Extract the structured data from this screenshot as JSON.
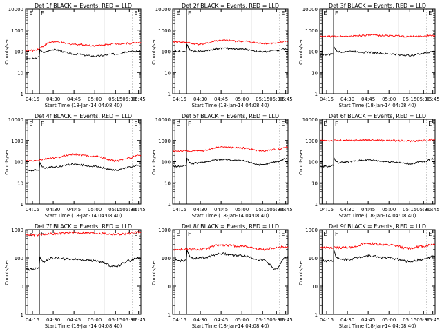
{
  "figure": {
    "xaxis_title": "Start Time (18-Jan-14 04:08:40)",
    "yaxis_title": "Counts/sec",
    "x_tick_labels": [
      "04:15",
      "04:30",
      "04:45",
      "05:00",
      "05:15",
      "05:30",
      "05:45"
    ],
    "marker_labels": [
      "E",
      "F",
      "E"
    ],
    "colors": {
      "events": "#000000",
      "lld": "#ff0000",
      "background": "#ffffff"
    }
  },
  "chart_data": [
    {
      "type": "line",
      "title": "Det 1f BLACK = Events, RED = LLD",
      "x": [
        "04:15",
        "04:30",
        "04:45",
        "05:00",
        "05:15",
        "05:30",
        "05:45"
      ],
      "ylim": [
        1,
        10000
      ],
      "y_scale": "log",
      "y_tick_labels": [
        "1",
        "10",
        "100",
        "1000",
        "10000"
      ],
      "series": [
        {
          "name": "Events",
          "color": "#000000",
          "values": [
            45,
            120,
            75,
            60,
            75,
            100,
            100
          ]
        },
        {
          "name": "LLD",
          "color": "#ff0000",
          "values": [
            110,
            280,
            220,
            190,
            230,
            240,
            260
          ]
        }
      ]
    },
    {
      "type": "line",
      "title": "Det 2f BLACK = Events, RED = LLD",
      "x": [
        "04:15",
        "04:30",
        "04:45",
        "05:00",
        "05:15",
        "05:30",
        "05:45"
      ],
      "ylim": [
        1,
        10000
      ],
      "y_scale": "log",
      "y_tick_labels": [
        "1",
        "10",
        "100",
        "1000",
        "10000"
      ],
      "series": [
        {
          "name": "Events",
          "color": "#000000",
          "values": [
            100,
            100,
            140,
            130,
            95,
            110,
            130
          ]
        },
        {
          "name": "LLD",
          "color": "#ff0000",
          "values": [
            280,
            220,
            330,
            300,
            240,
            240,
            300
          ]
        }
      ]
    },
    {
      "type": "line",
      "title": "Det 3f BLACK = Events, RED = LLD",
      "x": [
        "04:15",
        "04:30",
        "04:45",
        "05:00",
        "05:15",
        "05:30",
        "05:45"
      ],
      "ylim": [
        1,
        10000
      ],
      "y_scale": "log",
      "y_tick_labels": [
        "1",
        "10",
        "100",
        "1000",
        "10000"
      ],
      "series": [
        {
          "name": "Events",
          "color": "#000000",
          "values": [
            70,
            100,
            90,
            75,
            65,
            80,
            95
          ]
        },
        {
          "name": "LLD",
          "color": "#ff0000",
          "values": [
            500,
            520,
            580,
            560,
            500,
            530,
            560
          ]
        }
      ]
    },
    {
      "type": "line",
      "title": "Det 4f BLACK = Events, RED = LLD",
      "x": [
        "04:15",
        "04:30",
        "04:45",
        "05:00",
        "05:15",
        "05:30",
        "05:45"
      ],
      "ylim": [
        1,
        10000
      ],
      "y_scale": "log",
      "y_tick_labels": [
        "1",
        "10",
        "100",
        "1000",
        "10000"
      ],
      "series": [
        {
          "name": "Events",
          "color": "#000000",
          "values": [
            40,
            55,
            75,
            60,
            40,
            55,
            70
          ]
        },
        {
          "name": "LLD",
          "color": "#ff0000",
          "values": [
            110,
            150,
            220,
            180,
            110,
            150,
            200
          ]
        }
      ]
    },
    {
      "type": "line",
      "title": "Det 5f BLACK = Events, RED = LLD",
      "x": [
        "04:15",
        "04:30",
        "04:45",
        "05:00",
        "05:15",
        "05:30",
        "05:45"
      ],
      "ylim": [
        1,
        10000
      ],
      "y_scale": "log",
      "y_tick_labels": [
        "1",
        "10",
        "100",
        "1000",
        "10000"
      ],
      "series": [
        {
          "name": "Events",
          "color": "#000000",
          "values": [
            60,
            90,
            130,
            110,
            70,
            100,
            140
          ]
        },
        {
          "name": "LLD",
          "color": "#ff0000",
          "values": [
            320,
            320,
            500,
            450,
            320,
            380,
            480
          ]
        }
      ]
    },
    {
      "type": "line",
      "title": "Det 6f BLACK = Events, RED = LLD",
      "x": [
        "04:15",
        "04:30",
        "04:45",
        "05:00",
        "05:15",
        "05:30",
        "05:45"
      ],
      "ylim": [
        1,
        10000
      ],
      "y_scale": "log",
      "y_tick_labels": [
        "1",
        "10",
        "100",
        "1000",
        "10000"
      ],
      "series": [
        {
          "name": "Events",
          "color": "#000000",
          "values": [
            60,
            100,
            120,
            100,
            80,
            100,
            140
          ]
        },
        {
          "name": "LLD",
          "color": "#ff0000",
          "values": [
            1000,
            1000,
            1050,
            1000,
            950,
            1000,
            1100
          ]
        }
      ]
    },
    {
      "type": "line",
      "title": "Det 7f BLACK = Events, RED = LLD",
      "x": [
        "04:15",
        "04:30",
        "04:45",
        "05:00",
        "05:15",
        "05:30",
        "05:45"
      ],
      "ylim": [
        1,
        1000
      ],
      "y_scale": "log",
      "y_tick_labels": [
        "1",
        "10",
        "100",
        "1000"
      ],
      "series": [
        {
          "name": "Events",
          "color": "#000000",
          "values": [
            40,
            100,
            90,
            80,
            50,
            80,
            100
          ]
        },
        {
          "name": "LLD",
          "color": "#ff0000",
          "values": [
            650,
            700,
            780,
            750,
            680,
            720,
            800
          ]
        }
      ]
    },
    {
      "type": "line",
      "title": "Det 8f BLACK = Events, RED = LLD",
      "x": [
        "04:15",
        "04:30",
        "04:45",
        "05:00",
        "05:15",
        "05:30",
        "05:45"
      ],
      "ylim": [
        1,
        1000
      ],
      "y_scale": "log",
      "y_tick_labels": [
        "1",
        "10",
        "100",
        "1000"
      ],
      "series": [
        {
          "name": "Events",
          "color": "#000000",
          "values": [
            80,
            100,
            140,
            120,
            85,
            40,
            110
          ]
        },
        {
          "name": "LLD",
          "color": "#ff0000",
          "values": [
            200,
            200,
            280,
            260,
            200,
            230,
            250
          ]
        }
      ]
    },
    {
      "type": "line",
      "title": "Det 9f BLACK = Events, RED = LLD",
      "x": [
        "04:15",
        "04:30",
        "04:45",
        "05:00",
        "05:15",
        "05:30",
        "05:45"
      ],
      "ylim": [
        1,
        1000
      ],
      "y_scale": "log",
      "y_tick_labels": [
        "1",
        "10",
        "100",
        "1000"
      ],
      "series": [
        {
          "name": "Events",
          "color": "#000000",
          "values": [
            80,
            90,
            120,
            100,
            75,
            90,
            110
          ]
        },
        {
          "name": "LLD",
          "color": "#ff0000",
          "values": [
            230,
            230,
            320,
            280,
            220,
            260,
            300
          ]
        }
      ]
    }
  ]
}
